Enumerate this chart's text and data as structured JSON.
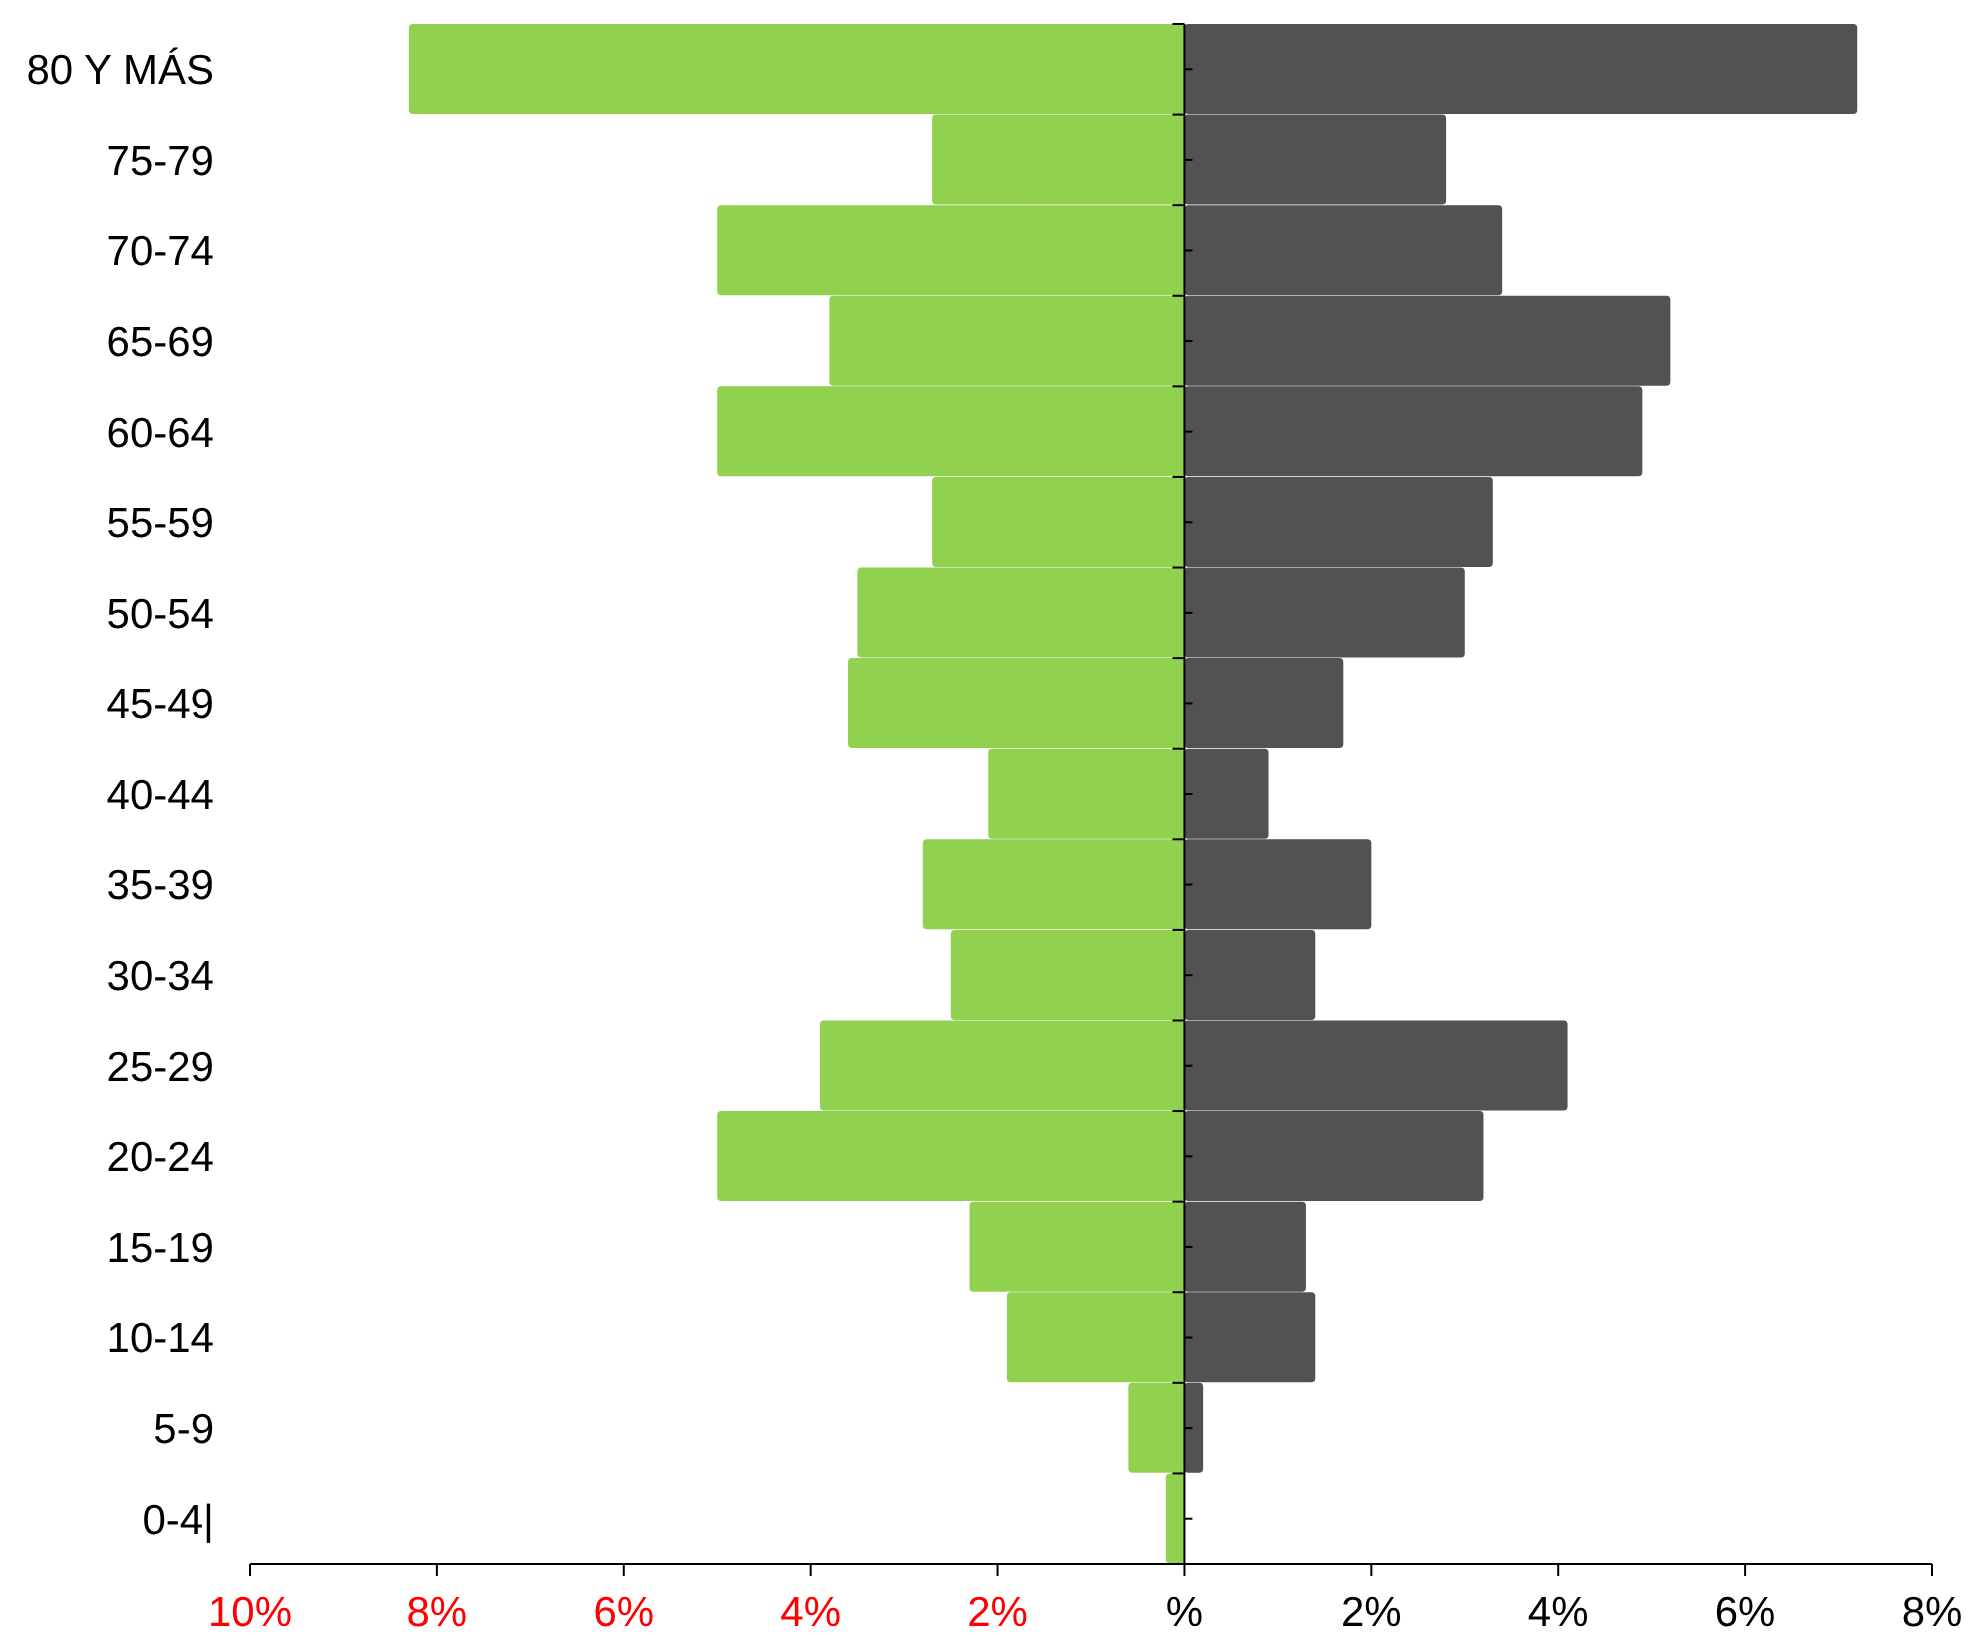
{
  "chart_data": {
    "type": "bar",
    "orientation": "horizontal",
    "stacked": true,
    "categories": [
      "80 Y MÁS",
      "75-79",
      "70-74",
      "65-69",
      "60-64",
      "55-59",
      "50-54",
      "45-49",
      "40-44",
      "35-39",
      "30-34",
      "25-29",
      "20-24",
      "15-19",
      "10-14",
      "5-9",
      "0-4|"
    ],
    "series": [
      {
        "color": "#92d050",
        "values": [
          -8.3,
          -2.7,
          -5.0,
          -3.8,
          -5.0,
          -2.7,
          -3.5,
          -3.6,
          -2.1,
          -2.8,
          -2.5,
          -3.9,
          -5.0,
          -2.3,
          -1.9,
          -0.6,
          -0.2
        ]
      },
      {
        "color": "#525252",
        "values": [
          7.2,
          2.8,
          3.4,
          5.2,
          4.9,
          3.3,
          3.0,
          1.7,
          0.9,
          2.0,
          1.4,
          4.1,
          3.2,
          1.3,
          1.4,
          0.2,
          null
        ]
      }
    ],
    "xlim": [
      -10,
      8
    ],
    "xticks": [
      {
        "value": -10,
        "label": "10%"
      },
      {
        "value": -8,
        "label": "8%"
      },
      {
        "value": -6,
        "label": "6%"
      },
      {
        "value": -4,
        "label": "4%"
      },
      {
        "value": -2,
        "label": "2%"
      },
      {
        "value": 0,
        "label": "%"
      },
      {
        "value": 2,
        "label": "2%"
      },
      {
        "value": 4,
        "label": "4%"
      },
      {
        "value": 6,
        "label": "6%"
      },
      {
        "value": 8,
        "label": "8%"
      }
    ],
    "ref_lines": [
      {
        "axis": "x",
        "value": 0
      }
    ]
  }
}
